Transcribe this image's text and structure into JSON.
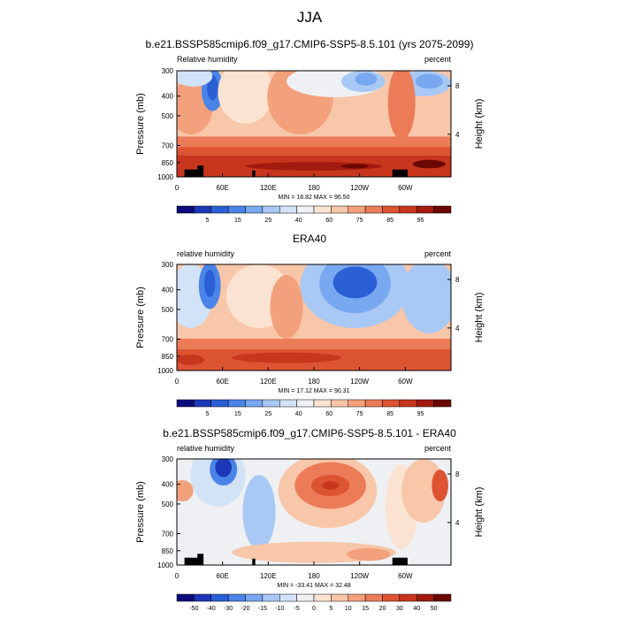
{
  "main_title": "JJA",
  "panels": [
    {
      "title": "b.e21.BSSP585cmip6.f09_g17.CMIP6-SSP5-8.5.101 (yrs 2075-2099)",
      "left_label": "Relative humidity",
      "right_label": "percent",
      "stats": "MIN = 18.82  MAX = 96.50",
      "y_label": "Pressure (mb)",
      "y2_label": "Height (km)",
      "y_ticks": [
        "300",
        "400",
        "500",
        "700",
        "850",
        "1000"
      ],
      "y2_ticks": [
        "8",
        "4"
      ],
      "x_ticks": [
        "0",
        "60E",
        "120E",
        "180",
        "120W",
        "60W"
      ],
      "cb_labels": [
        "5",
        "15",
        "25",
        "40",
        "60",
        "75",
        "85",
        "95"
      ],
      "colorbar": [
        "#0a0a7a",
        "#1c37b8",
        "#2a5fd6",
        "#4a84e8",
        "#78a8f0",
        "#a8c8f5",
        "#d2e2f7",
        "#eef0f4",
        "#fbe3d2",
        "#f8c6a8",
        "#f3a07c",
        "#ec7b58",
        "#dd5433",
        "#c8361d",
        "#a31b0e",
        "#6b0703"
      ]
    },
    {
      "title": "ERA40",
      "left_label": "relative humidity",
      "right_label": "percent",
      "stats": "MIN = 17.12  MAX = 90.31",
      "y_label": "Pressure (mb)",
      "y2_label": "Height (km)",
      "y_ticks": [
        "300",
        "400",
        "500",
        "700",
        "850",
        "1000"
      ],
      "y2_ticks": [
        "8",
        "4"
      ],
      "x_ticks": [
        "0",
        "60E",
        "120E",
        "180",
        "120W",
        "60W"
      ],
      "cb_labels": [
        "5",
        "15",
        "25",
        "40",
        "60",
        "75",
        "85",
        "95"
      ],
      "colorbar": [
        "#0a0a7a",
        "#1c37b8",
        "#2a5fd6",
        "#4a84e8",
        "#78a8f0",
        "#a8c8f5",
        "#d2e2f7",
        "#eef0f4",
        "#fbe3d2",
        "#f8c6a8",
        "#f3a07c",
        "#ec7b58",
        "#dd5433",
        "#c8361d",
        "#a31b0e",
        "#6b0703"
      ]
    },
    {
      "title": "b.e21.BSSP585cmip6.f09_g17.CMIP6-SSP5-8.5.101 - ERA40",
      "left_label": "relative humidity",
      "right_label": "percent",
      "stats": "MIN = -33.41  MAX = 32.48",
      "y_label": "Pressure (mb)",
      "y2_label": "Height (km)",
      "y_ticks": [
        "300",
        "400",
        "500",
        "700",
        "850",
        "1000"
      ],
      "y2_ticks": [
        "8",
        "4"
      ],
      "x_ticks": [
        "0",
        "60E",
        "120E",
        "180",
        "120W",
        "60W"
      ],
      "cb_labels": [
        "-50",
        "-40",
        "-30",
        "-20",
        "-15",
        "-10",
        "-5",
        "0",
        "5",
        "10",
        "15",
        "20",
        "30",
        "40",
        "50"
      ],
      "colorbar": [
        "#0a0a7a",
        "#1c37b8",
        "#2a5fd6",
        "#4a84e8",
        "#78a8f0",
        "#a8c8f5",
        "#d2e2f7",
        "#eef0f4",
        "#fbe3d2",
        "#f8c6a8",
        "#f3a07c",
        "#ec7b58",
        "#dd5433",
        "#c8361d",
        "#a31b0e",
        "#6b0703"
      ]
    }
  ],
  "chart_data": [
    {
      "type": "heatmap",
      "title": "b.e21.BSSP585cmip6.f09_g17.CMIP6-SSP5-8.5.101 (yrs 2075-2099)",
      "variable": "Relative humidity",
      "units": "percent",
      "xlabel": "",
      "ylabel": "Pressure (mb)",
      "y2label": "Height (km)",
      "x_ticks": [
        "0",
        "60E",
        "120E",
        "180",
        "120W",
        "60W"
      ],
      "y_ticks": [
        300,
        400,
        500,
        700,
        850,
        1000
      ],
      "min": 18.82,
      "max": 96.5,
      "levels": [
        5,
        15,
        25,
        40,
        60,
        75,
        85,
        95
      ]
    },
    {
      "type": "heatmap",
      "title": "ERA40",
      "variable": "relative humidity",
      "units": "percent",
      "xlabel": "",
      "ylabel": "Pressure (mb)",
      "y2label": "Height (km)",
      "x_ticks": [
        "0",
        "60E",
        "120E",
        "180",
        "120W",
        "60W"
      ],
      "y_ticks": [
        300,
        400,
        500,
        700,
        850,
        1000
      ],
      "min": 17.12,
      "max": 90.31,
      "levels": [
        5,
        15,
        25,
        40,
        60,
        75,
        85,
        95
      ]
    },
    {
      "type": "heatmap",
      "title": "b.e21.BSSP585cmip6.f09_g17.CMIP6-SSP5-8.5.101 - ERA40",
      "variable": "relative humidity",
      "units": "percent",
      "xlabel": "",
      "ylabel": "Pressure (mb)",
      "y2label": "Height (km)",
      "x_ticks": [
        "0",
        "60E",
        "120E",
        "180",
        "120W",
        "60W"
      ],
      "y_ticks": [
        300,
        400,
        500,
        700,
        850,
        1000
      ],
      "min": -33.41,
      "max": 32.48,
      "levels": [
        -50,
        -40,
        -30,
        -20,
        -15,
        -10,
        -5,
        0,
        5,
        10,
        15,
        20,
        30,
        40,
        50
      ]
    }
  ]
}
